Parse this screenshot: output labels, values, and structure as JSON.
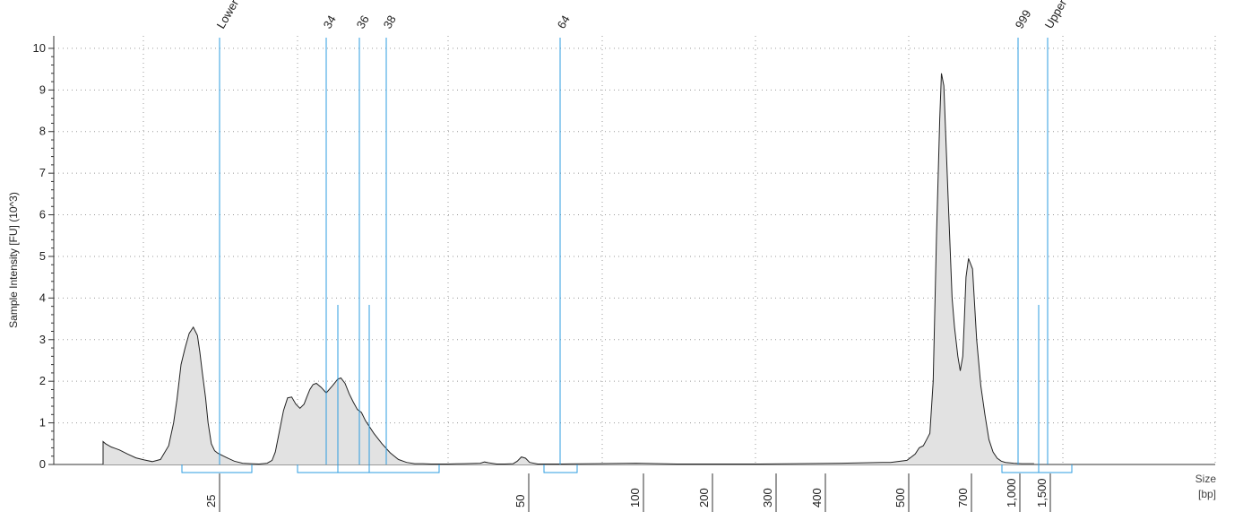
{
  "chart_data": {
    "type": "area",
    "ylabel": "Sample Intensity [FU] (10^3)",
    "xlabel": "Size",
    "xunit": "[bp]",
    "ylim": [
      0,
      10.3
    ],
    "yticks": [
      0,
      1,
      2,
      3,
      4,
      5,
      6,
      7,
      8,
      9,
      10
    ],
    "grid": true,
    "x_ticks": [
      "25",
      "50",
      "100",
      "200",
      "300",
      "400",
      "500",
      "700",
      "1,000",
      "1,500"
    ],
    "peak_labels": [
      "Lower",
      "34",
      "36",
      "38",
      "64",
      "999",
      "Upper"
    ],
    "trace": {
      "x_index": [
        0,
        3,
        10,
        20,
        30,
        40,
        50,
        60,
        70,
        80,
        86,
        90,
        95,
        100,
        105,
        110,
        115,
        118,
        121,
        125,
        128,
        132,
        136,
        140,
        150,
        160,
        170,
        180,
        190,
        200,
        206,
        210,
        215,
        220,
        225,
        230,
        235,
        240,
        245,
        248,
        252,
        256,
        260,
        266,
        272,
        280,
        286,
        290,
        295,
        300,
        305,
        310,
        315,
        320,
        330,
        340,
        350,
        360,
        370,
        380,
        390,
        400,
        420,
        440,
        460,
        465,
        470,
        480,
        490,
        500,
        505,
        510,
        515,
        520,
        530,
        560,
        600,
        650,
        700,
        800,
        900,
        950,
        960,
        980,
        990,
        995,
        1000,
        1004,
        1008,
        1012,
        1016,
        1020,
        1022,
        1025,
        1030,
        1035,
        1038,
        1042,
        1045,
        1048,
        1050,
        1052,
        1055,
        1060,
        1065,
        1070,
        1075,
        1080,
        1085,
        1090,
        1095,
        1100,
        1110,
        1120,
        1130,
        1135
      ],
      "values": [
        0.55,
        0.5,
        0.42,
        0.35,
        0.25,
        0.16,
        0.11,
        0.07,
        0.12,
        0.45,
        1.0,
        1.55,
        2.4,
        2.8,
        3.15,
        3.3,
        3.1,
        2.7,
        2.2,
        1.6,
        1.0,
        0.5,
        0.33,
        0.27,
        0.17,
        0.08,
        0.03,
        0.02,
        0.01,
        0.03,
        0.1,
        0.3,
        0.8,
        1.3,
        1.6,
        1.62,
        1.45,
        1.35,
        1.45,
        1.6,
        1.8,
        1.92,
        1.95,
        1.85,
        1.72,
        1.9,
        2.05,
        2.08,
        1.95,
        1.7,
        1.5,
        1.32,
        1.25,
        1.05,
        0.75,
        0.5,
        0.28,
        0.12,
        0.05,
        0.02,
        0.02,
        0.01,
        0.01,
        0.02,
        0.03,
        0.06,
        0.04,
        0.01,
        0.01,
        0.02,
        0.08,
        0.18,
        0.15,
        0.05,
        0.01,
        0.01,
        0.02,
        0.03,
        0.01,
        0.01,
        0.03,
        0.05,
        0.05,
        0.1,
        0.25,
        0.4,
        0.45,
        0.6,
        0.75,
        2.0,
        5.5,
        8.3,
        9.4,
        9.1,
        6.5,
        4.0,
        3.3,
        2.6,
        2.25,
        2.6,
        3.5,
        4.5,
        4.95,
        4.7,
        3.0,
        1.9,
        1.2,
        0.6,
        0.3,
        0.15,
        0.08,
        0.05,
        0.03,
        0.02,
        0.02,
        0.02
      ],
      "x_index_max": 1240
    }
  }
}
